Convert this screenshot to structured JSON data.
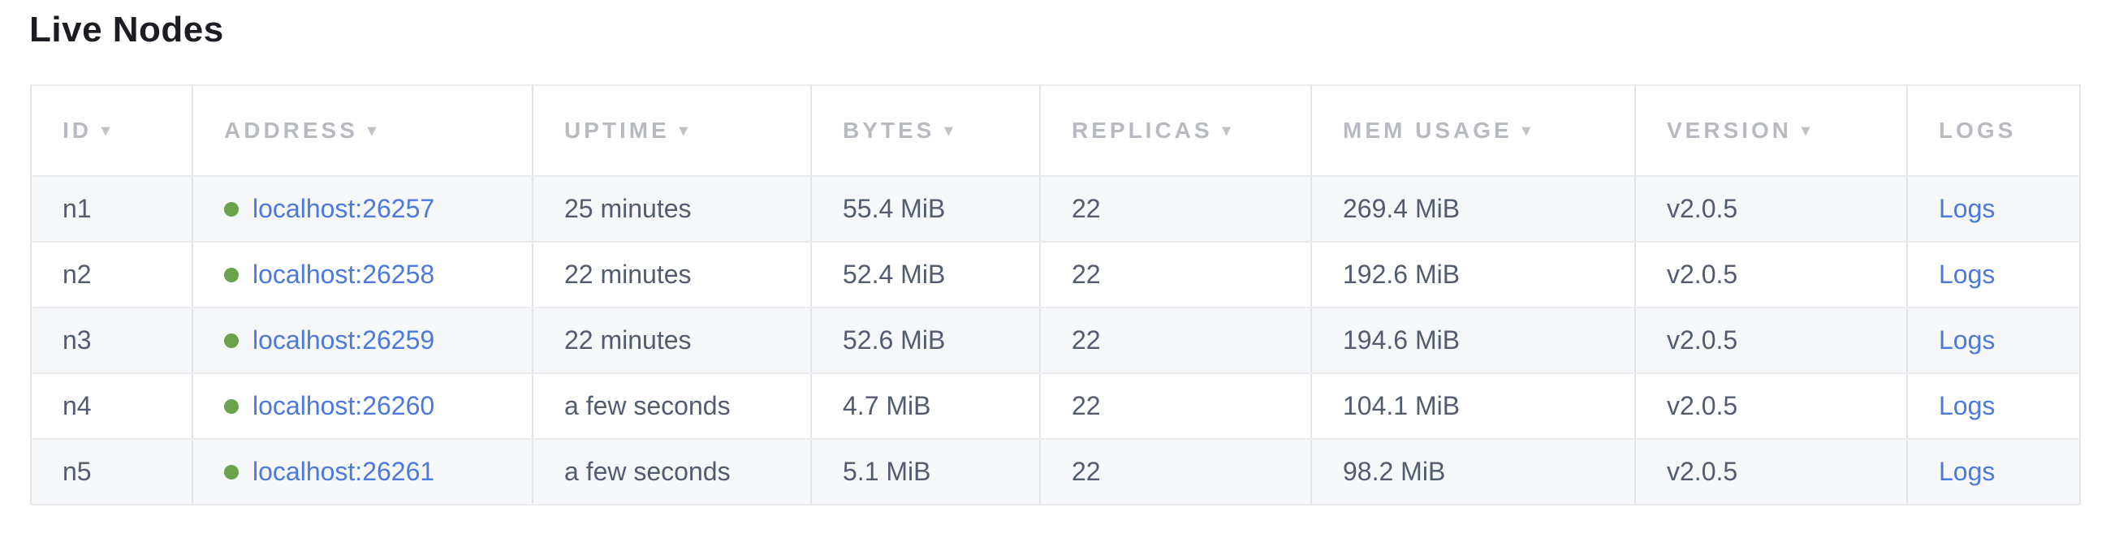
{
  "page": {
    "title": "Live Nodes"
  },
  "table": {
    "sort_arrow_icon": "▾",
    "columns": [
      {
        "label": "ID",
        "sortable": true
      },
      {
        "label": "ADDRESS",
        "sortable": true
      },
      {
        "label": "UPTIME",
        "sortable": true
      },
      {
        "label": "BYTES",
        "sortable": true
      },
      {
        "label": "REPLICAS",
        "sortable": true
      },
      {
        "label": "MEM USAGE",
        "sortable": true
      },
      {
        "label": "VERSION",
        "sortable": true
      },
      {
        "label": "LOGS",
        "sortable": false
      }
    ],
    "rows": [
      {
        "id": "n1",
        "address": "localhost:26257",
        "uptime": "25 minutes",
        "bytes": "55.4 MiB",
        "replicas": "22",
        "mem_usage": "269.4 MiB",
        "version": "v2.0.5",
        "logs_label": "Logs"
      },
      {
        "id": "n2",
        "address": "localhost:26258",
        "uptime": "22 minutes",
        "bytes": "52.4 MiB",
        "replicas": "22",
        "mem_usage": "192.6 MiB",
        "version": "v2.0.5",
        "logs_label": "Logs"
      },
      {
        "id": "n3",
        "address": "localhost:26259",
        "uptime": "22 minutes",
        "bytes": "52.6 MiB",
        "replicas": "22",
        "mem_usage": "194.6 MiB",
        "version": "v2.0.5",
        "logs_label": "Logs"
      },
      {
        "id": "n4",
        "address": "localhost:26260",
        "uptime": "a few seconds",
        "bytes": "4.7 MiB",
        "replicas": "22",
        "mem_usage": "104.1 MiB",
        "version": "v2.0.5",
        "logs_label": "Logs"
      },
      {
        "id": "n5",
        "address": "localhost:26261",
        "uptime": "a few seconds",
        "bytes": "5.1 MiB",
        "replicas": "22",
        "mem_usage": "98.2 MiB",
        "version": "v2.0.5",
        "logs_label": "Logs"
      }
    ]
  },
  "colors": {
    "link_blue": "#4c79dd",
    "live_status_green": "#6ca24b",
    "header_text_gray": "#b7bac0",
    "body_text_slate": "#535b6f",
    "row_stripe_gray": "#f6f7f8",
    "border_gray": "#e2e4e8"
  }
}
